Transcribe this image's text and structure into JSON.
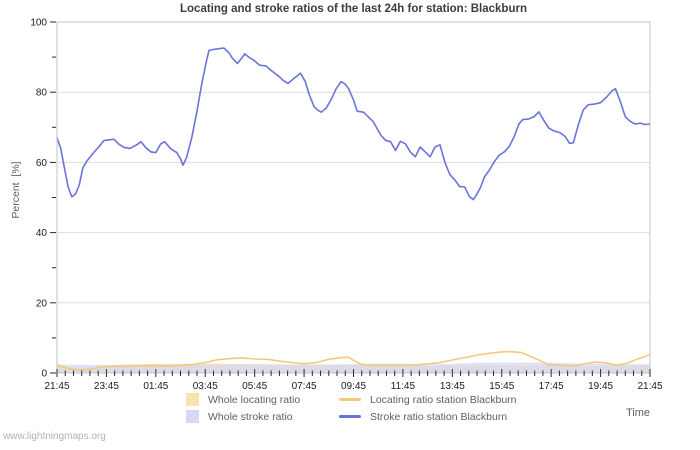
{
  "watermark": "www.lightningmaps.org",
  "chart_data": {
    "type": "line",
    "title": "Locating and stroke ratios of the last 24h for station: Blackburn",
    "ylabel": "Percent  [%]",
    "xlabel": "Time",
    "ylim": [
      0,
      100
    ],
    "x_hours_span": 24,
    "x_tick_labels": [
      "21:45",
      "23:45",
      "01:45",
      "03:45",
      "05:45",
      "07:45",
      "09:45",
      "11:45",
      "13:45",
      "15:45",
      "17:45",
      "19:45",
      "21:45"
    ],
    "x_major_every_hours": 2,
    "x_minor_every_minutes": 20,
    "y_major_ticks": [
      0,
      20,
      40,
      60,
      80,
      100
    ],
    "y_minor_ticks": [
      10,
      30,
      50,
      70,
      90
    ],
    "grid": "horizontal-only",
    "legend_position": "bottom",
    "colors": {
      "background": "#ffffff",
      "plot_border": "#c6c6c6",
      "grid": "#dedede",
      "tick": "#2a2a2a",
      "title_text": "#3c3c3c",
      "axis_text": "#1c1c1c",
      "muted_text": "#5f5f5f",
      "watermark_text": "#b2b2b2"
    },
    "series": [
      {
        "name": "Whole locating ratio",
        "style": "area",
        "legend_swatch": "fill",
        "color": "#fbe2ad",
        "opacity": 1,
        "points": [
          [
            0,
            2
          ],
          [
            0.5,
            1.6
          ],
          [
            1,
            1.4
          ],
          [
            1.5,
            1.8
          ],
          [
            2,
            2.2
          ],
          [
            3,
            2.5
          ],
          [
            4,
            2.6
          ],
          [
            5,
            2.6
          ],
          [
            6,
            2.7
          ],
          [
            7,
            2.6
          ],
          [
            8,
            2.5
          ],
          [
            9,
            2.4
          ],
          [
            10,
            2.3
          ],
          [
            11,
            2.4
          ],
          [
            12,
            2.4
          ],
          [
            13,
            2.2
          ],
          [
            14,
            2
          ],
          [
            15,
            2
          ],
          [
            16,
            2.1
          ],
          [
            17,
            2.2
          ],
          [
            18,
            2.2
          ],
          [
            19,
            2.1
          ],
          [
            20,
            2
          ],
          [
            21,
            1.9
          ],
          [
            22,
            2
          ],
          [
            23,
            2.1
          ],
          [
            24,
            2.2
          ]
        ]
      },
      {
        "name": "Whole stroke ratio",
        "style": "area",
        "legend_swatch": "fill",
        "color": "#d7d9f3",
        "opacity": 0.8,
        "points": [
          [
            0,
            2.4
          ],
          [
            2,
            2.3
          ],
          [
            4,
            2.4
          ],
          [
            6,
            2.4
          ],
          [
            8,
            2.5
          ],
          [
            10,
            2.4
          ],
          [
            12,
            2.5
          ],
          [
            13,
            2.7
          ],
          [
            14,
            2.7
          ],
          [
            15,
            2.5
          ],
          [
            16,
            2.6
          ],
          [
            17,
            2.9
          ],
          [
            18,
            3
          ],
          [
            19,
            3
          ],
          [
            20,
            2.9
          ],
          [
            21,
            2.7
          ],
          [
            22,
            2.6
          ],
          [
            23,
            2.5
          ],
          [
            24,
            2.5
          ]
        ]
      },
      {
        "name": "Locating ratio station Blackburn",
        "style": "line",
        "legend_swatch": "line",
        "color": "#f3c97e",
        "opacity": 1,
        "points": [
          [
            0,
            2.3
          ],
          [
            0.5,
            1.2
          ],
          [
            0.9,
            0.8
          ],
          [
            1.3,
            1
          ],
          [
            1.8,
            1.7
          ],
          [
            2.2,
            1.9
          ],
          [
            3,
            1.9
          ],
          [
            3.5,
            2
          ],
          [
            4,
            2.1
          ],
          [
            4.5,
            2
          ],
          [
            5,
            2.2
          ],
          [
            5.5,
            2.4
          ],
          [
            6,
            3
          ],
          [
            6.5,
            3.8
          ],
          [
            7,
            4.1
          ],
          [
            7.5,
            4.3
          ],
          [
            8,
            4
          ],
          [
            8.5,
            3.9
          ],
          [
            9,
            3.4
          ],
          [
            9.5,
            3
          ],
          [
            10,
            2.6
          ],
          [
            10.5,
            3
          ],
          [
            11,
            3.9
          ],
          [
            11.5,
            4.4
          ],
          [
            11.8,
            4.5
          ],
          [
            12,
            3.6
          ],
          [
            12.3,
            2.5
          ],
          [
            12.8,
            2.2
          ],
          [
            13.5,
            2.2
          ],
          [
            14,
            2.2
          ],
          [
            14.5,
            2.3
          ],
          [
            15,
            2.6
          ],
          [
            15.5,
            3
          ],
          [
            16,
            3.7
          ],
          [
            16.5,
            4.4
          ],
          [
            17,
            5.1
          ],
          [
            17.5,
            5.6
          ],
          [
            18,
            6
          ],
          [
            18.3,
            6.1
          ],
          [
            18.8,
            5.8
          ],
          [
            19.2,
            4.6
          ],
          [
            19.5,
            3.7
          ],
          [
            19.9,
            2.4
          ],
          [
            20.5,
            2.1
          ],
          [
            21,
            2.1
          ],
          [
            21.5,
            2.8
          ],
          [
            21.8,
            3.1
          ],
          [
            22.2,
            2.9
          ],
          [
            22.6,
            2.3
          ],
          [
            23,
            2.6
          ],
          [
            23.5,
            4
          ],
          [
            24,
            5.2
          ]
        ]
      },
      {
        "name": "Stroke ratio station Blackburn",
        "style": "line",
        "legend_swatch": "line",
        "color": "#6a73d9",
        "opacity": 1,
        "points": [
          [
            0,
            67
          ],
          [
            0.15,
            64
          ],
          [
            0.3,
            58.5
          ],
          [
            0.45,
            53
          ],
          [
            0.6,
            50.2
          ],
          [
            0.75,
            51
          ],
          [
            0.9,
            53.5
          ],
          [
            1.05,
            58.5
          ],
          [
            1.2,
            60.3
          ],
          [
            1.45,
            62.5
          ],
          [
            1.7,
            64.5
          ],
          [
            1.9,
            66.2
          ],
          [
            2.1,
            66.4
          ],
          [
            2.3,
            66.6
          ],
          [
            2.5,
            65.2
          ],
          [
            2.7,
            64.3
          ],
          [
            2.95,
            64
          ],
          [
            3.2,
            64.9
          ],
          [
            3.4,
            65.9
          ],
          [
            3.6,
            64.2
          ],
          [
            3.8,
            63
          ],
          [
            4,
            62.8
          ],
          [
            4.2,
            65.3
          ],
          [
            4.35,
            65.9
          ],
          [
            4.6,
            63.9
          ],
          [
            4.85,
            62.8
          ],
          [
            5,
            61
          ],
          [
            5.1,
            59.2
          ],
          [
            5.25,
            61.5
          ],
          [
            5.45,
            67
          ],
          [
            5.65,
            74
          ],
          [
            5.85,
            82
          ],
          [
            6.05,
            89
          ],
          [
            6.15,
            91.9
          ],
          [
            6.35,
            92.2
          ],
          [
            6.55,
            92.4
          ],
          [
            6.75,
            92.6
          ],
          [
            6.95,
            91.3
          ],
          [
            7.1,
            89.7
          ],
          [
            7.3,
            88.2
          ],
          [
            7.45,
            89.5
          ],
          [
            7.6,
            90.9
          ],
          [
            7.8,
            89.8
          ],
          [
            7.95,
            89.2
          ],
          [
            8.2,
            87.7
          ],
          [
            8.45,
            87.5
          ],
          [
            8.7,
            86
          ],
          [
            9,
            84.4
          ],
          [
            9.15,
            83.4
          ],
          [
            9.35,
            82.5
          ],
          [
            9.6,
            84
          ],
          [
            9.85,
            85.4
          ],
          [
            10.05,
            83
          ],
          [
            10.2,
            79.5
          ],
          [
            10.4,
            75.9
          ],
          [
            10.55,
            74.9
          ],
          [
            10.7,
            74.3
          ],
          [
            10.9,
            75.5
          ],
          [
            11.1,
            78
          ],
          [
            11.3,
            81
          ],
          [
            11.5,
            83
          ],
          [
            11.65,
            82.4
          ],
          [
            11.8,
            81
          ],
          [
            12,
            77.8
          ],
          [
            12.15,
            74.6
          ],
          [
            12.4,
            74.3
          ],
          [
            12.6,
            73
          ],
          [
            12.8,
            71.6
          ],
          [
            12.95,
            69.7
          ],
          [
            13.1,
            67.8
          ],
          [
            13.3,
            66.3
          ],
          [
            13.5,
            65.9
          ],
          [
            13.7,
            63.4
          ],
          [
            13.9,
            66
          ],
          [
            14.1,
            65.3
          ],
          [
            14.3,
            63
          ],
          [
            14.5,
            61.6
          ],
          [
            14.7,
            64.4
          ],
          [
            14.9,
            63
          ],
          [
            15.1,
            61.6
          ],
          [
            15.3,
            64.4
          ],
          [
            15.5,
            65
          ],
          [
            15.7,
            60
          ],
          [
            15.9,
            56.5
          ],
          [
            16.1,
            55
          ],
          [
            16.3,
            53.1
          ],
          [
            16.5,
            53
          ],
          [
            16.7,
            50.2
          ],
          [
            16.85,
            49.4
          ],
          [
            17,
            51
          ],
          [
            17.15,
            53
          ],
          [
            17.3,
            55.9
          ],
          [
            17.5,
            57.8
          ],
          [
            17.7,
            60.2
          ],
          [
            17.9,
            62.1
          ],
          [
            18.1,
            63
          ],
          [
            18.3,
            64.5
          ],
          [
            18.5,
            67.3
          ],
          [
            18.7,
            71
          ],
          [
            18.85,
            72.2
          ],
          [
            19.1,
            72.4
          ],
          [
            19.3,
            73
          ],
          [
            19.5,
            74.4
          ],
          [
            19.7,
            72
          ],
          [
            19.9,
            69.8
          ],
          [
            20.1,
            69
          ],
          [
            20.35,
            68.5
          ],
          [
            20.55,
            67.5
          ],
          [
            20.75,
            65.4
          ],
          [
            20.9,
            65.6
          ],
          [
            21.1,
            70.7
          ],
          [
            21.3,
            75
          ],
          [
            21.5,
            76.4
          ],
          [
            21.75,
            76.6
          ],
          [
            22,
            77
          ],
          [
            22.25,
            78.7
          ],
          [
            22.45,
            80.3
          ],
          [
            22.6,
            81
          ],
          [
            22.8,
            77.3
          ],
          [
            23,
            73
          ],
          [
            23.2,
            71.7
          ],
          [
            23.4,
            70.9
          ],
          [
            23.6,
            71.2
          ],
          [
            23.8,
            70.8
          ],
          [
            24,
            70.9
          ]
        ]
      }
    ]
  }
}
